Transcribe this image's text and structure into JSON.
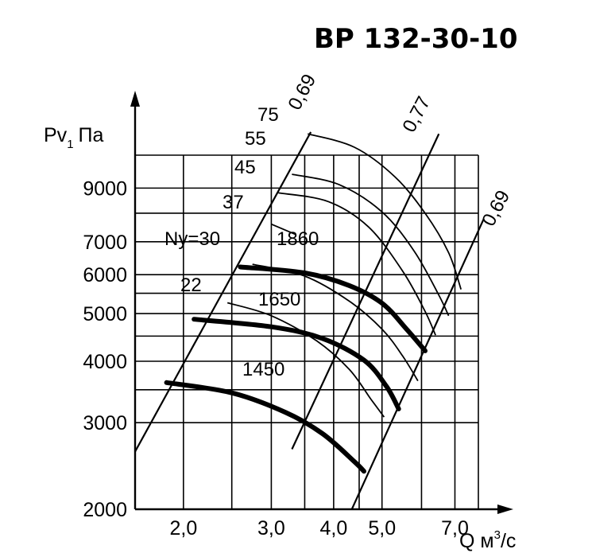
{
  "chart_data": {
    "type": "line",
    "title": "BP 132-30-10",
    "ylabel": "Pv",
    "ylabel_sub": "1",
    "ylabel_unit": "Па",
    "xlabel": "Q м",
    "xlabel_sup": "3",
    "xlabel_unit": "/с",
    "x_scale": "log",
    "y_scale": "log",
    "xlim": [
      1.6,
      7.8
    ],
    "ylim": [
      2000,
      10500
    ],
    "x_ticks": [
      2.0,
      3.0,
      4.0,
      5.0,
      7.0
    ],
    "x_tick_labels": [
      "2,0",
      "3,0",
      "4,0",
      "5,0",
      "7,0"
    ],
    "y_ticks": [
      2000,
      3000,
      4000,
      5000,
      6000,
      7000,
      9000
    ],
    "y_tick_labels": [
      "2000",
      "3000",
      "4000",
      "5000",
      "6000",
      "7000",
      "9000"
    ],
    "x_grid": [
      1.6,
      2.0,
      2.5,
      3.0,
      3.5,
      4.0,
      4.5,
      5.0,
      6.0,
      7.0,
      7.8
    ],
    "y_grid": [
      2000,
      3000,
      3500,
      4000,
      4500,
      5000,
      5500,
      6000,
      7000,
      8000,
      9000,
      10500
    ],
    "speed_curves": [
      {
        "name": "1450",
        "points": [
          [
            1.85,
            3620
          ],
          [
            2.5,
            3450
          ],
          [
            3.2,
            3150
          ],
          [
            3.8,
            2850
          ],
          [
            4.4,
            2500
          ],
          [
            4.6,
            2390
          ]
        ]
      },
      {
        "name": "1650",
        "points": [
          [
            2.1,
            4870
          ],
          [
            3.0,
            4700
          ],
          [
            3.8,
            4450
          ],
          [
            4.6,
            4020
          ],
          [
            5.1,
            3560
          ],
          [
            5.4,
            3200
          ]
        ]
      },
      {
        "name": "1860",
        "points": [
          [
            2.6,
            6220
          ],
          [
            3.5,
            6050
          ],
          [
            4.3,
            5700
          ],
          [
            5.0,
            5250
          ],
          [
            5.6,
            4650
          ],
          [
            6.1,
            4200
          ]
        ]
      }
    ],
    "power_curves": [
      {
        "name": "22",
        "points": [
          [
            2.45,
            5260
          ],
          [
            3.0,
            4950
          ],
          [
            3.7,
            4400
          ],
          [
            4.3,
            3850
          ],
          [
            4.75,
            3350
          ],
          [
            5.05,
            3080
          ]
        ]
      },
      {
        "name": "Ny=30",
        "points": [
          [
            2.75,
            6300
          ],
          [
            3.5,
            5960
          ],
          [
            4.3,
            5300
          ],
          [
            5.0,
            4650
          ],
          [
            5.5,
            4100
          ],
          [
            5.9,
            3650
          ]
        ]
      },
      {
        "name": "37",
        "points": [
          [
            3.0,
            7600
          ],
          [
            3.35,
            7250
          ]
        ]
      },
      {
        "name": "45",
        "points": [
          [
            3.1,
            8800
          ],
          [
            3.9,
            8450
          ],
          [
            4.7,
            7500
          ],
          [
            5.5,
            6100
          ],
          [
            6.1,
            5050
          ],
          [
            6.4,
            4520
          ]
        ]
      },
      {
        "name": "55",
        "points": [
          [
            3.3,
            9600
          ],
          [
            4.1,
            9150
          ],
          [
            5.0,
            8050
          ],
          [
            5.8,
            6700
          ],
          [
            6.5,
            5450
          ],
          [
            6.8,
            4950
          ]
        ]
      },
      {
        "name": "75",
        "points": [
          [
            3.55,
            11600
          ],
          [
            4.4,
            10900
          ],
          [
            5.3,
            9500
          ],
          [
            6.1,
            8000
          ],
          [
            6.8,
            6650
          ],
          [
            7.2,
            5600
          ]
        ]
      }
    ],
    "efficiency_lines": [
      {
        "name": "0,69",
        "points": [
          [
            1.6,
            2620
          ],
          [
            3.6,
            11700
          ]
        ]
      },
      {
        "name": "0,77",
        "points": [
          [
            3.3,
            2650
          ],
          [
            6.5,
            11600
          ]
        ]
      },
      {
        "name": "0,69",
        "points": [
          [
            4.35,
            2000
          ],
          [
            8.0,
            7800
          ]
        ]
      }
    ],
    "power_curve_labels": [
      "75",
      "55",
      "45",
      "37",
      "Ny=30",
      "22"
    ],
    "speed_curve_labels": [
      "1860",
      "1650",
      "1450"
    ],
    "efficiency_labels": [
      "0,69",
      "0,77",
      "0,69"
    ]
  }
}
